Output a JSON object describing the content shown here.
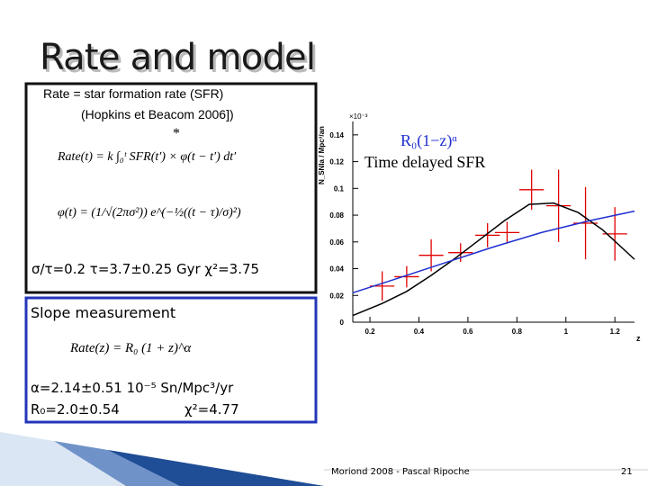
{
  "slide": {
    "title": "Rate and model",
    "model_box": {
      "lines": [
        "Rate = star formation rate  (SFR)",
        "(Hopkins et Beacom 2006])",
        "*"
      ],
      "formula_rate": "Rate(t) = k ∫₀ᵗ SFR(t′) × φ(t − t′) dt′",
      "formula_phi": "φ(t) = (1/√(2πσ²)) e^(−½((t − τ)/σ)²)",
      "result": "σ/τ=0.2  τ=3.7±0.25 Gyr  χ²=3.75"
    },
    "slope_box": {
      "heading": "Slope measurement",
      "formula": "Rate(z) = R₀ (1 + z)^α",
      "alpha": "α=2.14±0.51 10⁻⁵ Sn/Mpc³/yr",
      "r0": "R₀=2.0±0.54",
      "chi2": "χ²=4.77"
    }
  },
  "footer": {
    "text": "Moriond 2008 - Pascal Ripoche",
    "page": "21"
  },
  "chart_data": {
    "type": "line",
    "ylabel": "N_SNIa / Mpc³/an",
    "y_multiplier": "×10⁻³",
    "xlabel": "z",
    "xlim": [
      0.13,
      1.28
    ],
    "ylim": [
      0,
      0.15
    ],
    "xticks": [
      0.2,
      0.4,
      0.6,
      0.8,
      1,
      1.2
    ],
    "yticks": [
      0,
      0.02,
      0.04,
      0.06,
      0.08,
      0.1,
      0.12,
      0.14
    ],
    "series": [
      {
        "type": "errorbar",
        "color": "#e00000",
        "x": [
          0.25,
          0.35,
          0.45,
          0.57,
          0.68,
          0.76,
          0.86,
          0.97,
          1.08,
          1.2
        ],
        "values": [
          0.027,
          0.034,
          0.05,
          0.052,
          0.065,
          0.067,
          0.099,
          0.087,
          0.074,
          0.066
        ],
        "xerr": [
          0.05,
          0.05,
          0.05,
          0.05,
          0.05,
          0.05,
          0.05,
          0.05,
          0.05,
          0.05
        ],
        "yerr": [
          0.011,
          0.008,
          0.012,
          0.007,
          0.009,
          0.008,
          0.015,
          0.027,
          0.027,
          0.02
        ]
      },
      {
        "type": "line",
        "name": "Time delayed SFR",
        "color": "#000000",
        "x": [
          0.13,
          0.25,
          0.35,
          0.45,
          0.55,
          0.65,
          0.75,
          0.85,
          0.95,
          1.05,
          1.15,
          1.28
        ],
        "values": [
          0.005,
          0.014,
          0.023,
          0.035,
          0.048,
          0.062,
          0.076,
          0.088,
          0.089,
          0.082,
          0.069,
          0.047
        ]
      },
      {
        "type": "line",
        "name": "R₀(1−z)ᵅ",
        "color": "#1f2fd0",
        "x": [
          0.13,
          0.3,
          0.5,
          0.7,
          0.9,
          1.1,
          1.28
        ],
        "values": [
          0.022,
          0.032,
          0.044,
          0.056,
          0.067,
          0.076,
          0.083
        ]
      }
    ]
  }
}
